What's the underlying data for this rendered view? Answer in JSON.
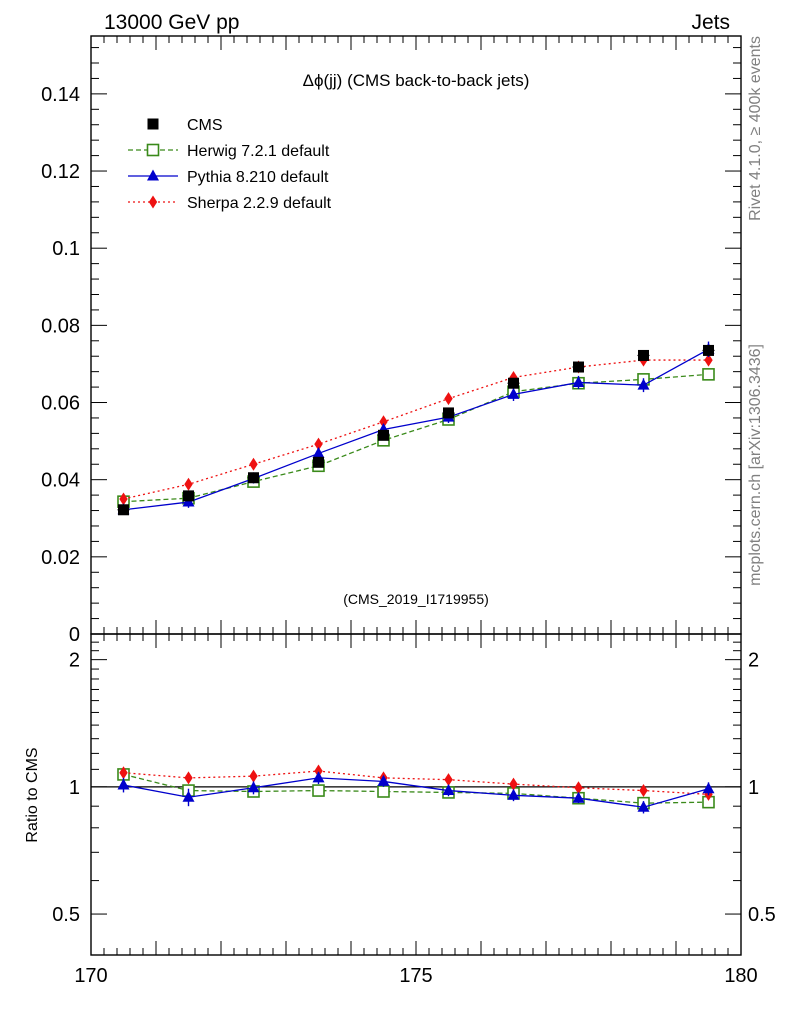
{
  "header": {
    "energy_label": "13000 GeV pp",
    "process_label": "Jets"
  },
  "side_labels": {
    "rivet": "Rivet 4.1.0, ≥ 400k events",
    "mcplots": "mcplots.cern.ch [arXiv:1306.3436]"
  },
  "colors": {
    "cms": "#000000",
    "herwig": "#3a8a1a",
    "pythia": "#0000cc",
    "sherpa": "#ee1111",
    "watermark": "#a0a0a0"
  },
  "chart_data": [
    {
      "type": "line",
      "title": "Δϕ(jj) (CMS back-to-back jets)",
      "watermark": "(CMS_2019_I1719955)",
      "xlabel": "",
      "ylabel": "",
      "xlim": [
        170,
        180
      ],
      "ylim": [
        0,
        0.155
      ],
      "yticks": [
        0,
        0.02,
        0.04,
        0.06,
        0.08,
        0.1,
        0.12,
        0.14
      ],
      "ytick_labels": [
        "0",
        "0.02",
        "0.04",
        "0.06",
        "0.08",
        "0.1",
        "0.12",
        "0.14"
      ],
      "x": [
        170.5,
        171.5,
        172.5,
        173.5,
        174.5,
        175.5,
        176.5,
        177.5,
        178.5,
        179.5
      ],
      "series": [
        {
          "name": "CMS",
          "style": "data",
          "values": [
            0.0322,
            0.0358,
            0.0405,
            0.0445,
            0.0515,
            0.0573,
            0.065,
            0.0692,
            0.0722,
            0.0735
          ],
          "errors": [
            0.0008,
            0.0008,
            0.0008,
            0.0008,
            0.0008,
            0.0008,
            0.0008,
            0.0008,
            0.0008,
            0.0009
          ]
        },
        {
          "name": "Herwig 7.2.1 default",
          "style": "herwig",
          "values": [
            0.0343,
            0.0352,
            0.0395,
            0.0436,
            0.0502,
            0.0556,
            0.0628,
            0.065,
            0.066,
            0.0673
          ],
          "errors": [
            0.0005,
            0.0005,
            0.0005,
            0.0005,
            0.0005,
            0.0005,
            0.0005,
            0.0005,
            0.0005,
            0.0005
          ]
        },
        {
          "name": "Pythia 8.210 default",
          "style": "pythia",
          "values": [
            0.0322,
            0.0342,
            0.0403,
            0.0468,
            0.053,
            0.0562,
            0.0621,
            0.0652,
            0.0645,
            0.0738
          ],
          "errors": [
            0.0013,
            0.0015,
            0.0013,
            0.0014,
            0.0014,
            0.0015,
            0.0017,
            0.0017,
            0.0018,
            0.002
          ]
        },
        {
          "name": "Sherpa 2.2.9 default",
          "style": "sherpa",
          "values": [
            0.035,
            0.0388,
            0.044,
            0.0492,
            0.055,
            0.061,
            0.0665,
            0.0692,
            0.071,
            0.071
          ],
          "errors": [
            0.0005,
            0.0005,
            0.0005,
            0.0005,
            0.0005,
            0.0005,
            0.0005,
            0.0005,
            0.0005,
            0.0005
          ]
        }
      ],
      "legend_position": "top-left"
    },
    {
      "type": "line",
      "title": "",
      "xlabel": "",
      "ylabel": "Ratio to CMS",
      "xlim": [
        170,
        180
      ],
      "ylim": [
        0.4,
        2.3
      ],
      "scale": "log",
      "xticks": [
        170,
        175,
        180
      ],
      "xtick_labels": [
        "170",
        "175",
        "180"
      ],
      "yticks": [
        0.5,
        1,
        2
      ],
      "ytick_labels": [
        "0.5",
        "1",
        "2"
      ],
      "x": [
        170.5,
        171.5,
        172.5,
        173.5,
        174.5,
        175.5,
        176.5,
        177.5,
        178.5,
        179.5
      ],
      "series": [
        {
          "name": "Herwig 7.2.1 default",
          "style": "herwig",
          "values": [
            1.07,
            0.98,
            0.975,
            0.98,
            0.975,
            0.97,
            0.965,
            0.94,
            0.915,
            0.92
          ]
        },
        {
          "name": "Pythia 8.210 default",
          "style": "pythia",
          "values": [
            1.01,
            0.945,
            0.995,
            1.05,
            1.03,
            0.98,
            0.955,
            0.94,
            0.895,
            0.99
          ],
          "errors": [
            0.04,
            0.045,
            0.035,
            0.035,
            0.03,
            0.03,
            0.03,
            0.025,
            0.03,
            0.035
          ]
        },
        {
          "name": "Sherpa 2.2.9 default",
          "style": "sherpa",
          "values": [
            1.08,
            1.05,
            1.06,
            1.09,
            1.05,
            1.04,
            1.015,
            0.995,
            0.98,
            0.96
          ]
        }
      ]
    }
  ]
}
